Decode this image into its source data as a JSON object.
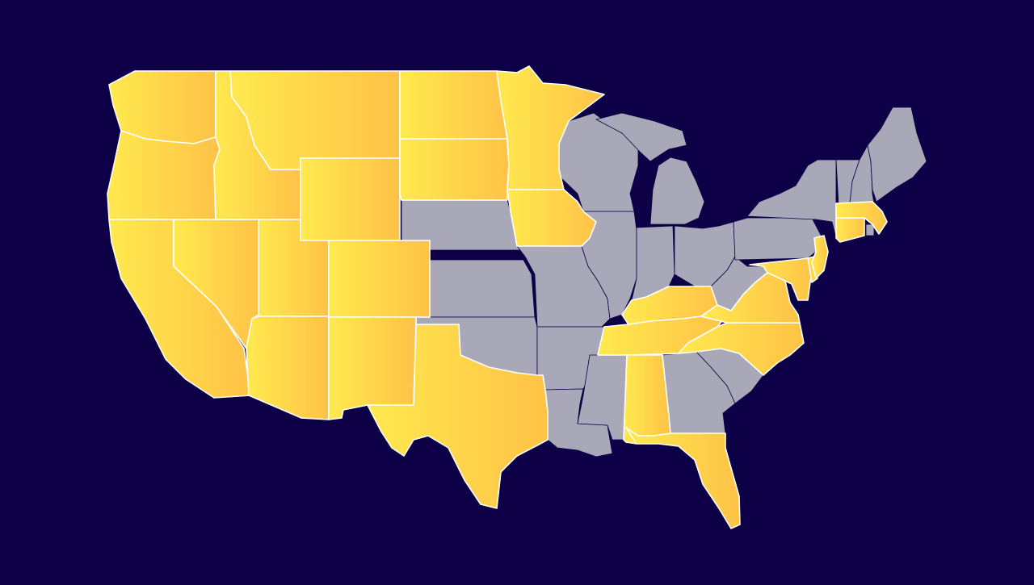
{
  "map": {
    "colors": {
      "background": "#0d0047",
      "base_fill": "#a9a8b8",
      "highlight_gradient_start": "#ffe94f",
      "highlight_gradient_end": "#ffc247",
      "highlight_stroke": "#ffffff"
    },
    "highlighted_states": [
      "WA",
      "OR",
      "CA",
      "ID",
      "NV",
      "MT",
      "WY",
      "UT",
      "AZ",
      "CO",
      "NM",
      "ND",
      "SD",
      "MN",
      "IA",
      "TX",
      "KY",
      "TN",
      "NC",
      "VA",
      "MD",
      "DE",
      "NJ",
      "CT",
      "MA",
      "AL",
      "FL"
    ],
    "base_states": [
      "NE",
      "KS",
      "OK",
      "MO",
      "AR",
      "LA",
      "MS",
      "WI",
      "MI",
      "IL",
      "IN",
      "OH",
      "WV",
      "GA",
      "SC",
      "PA",
      "NY",
      "VT",
      "NH",
      "ME",
      "RI"
    ]
  }
}
